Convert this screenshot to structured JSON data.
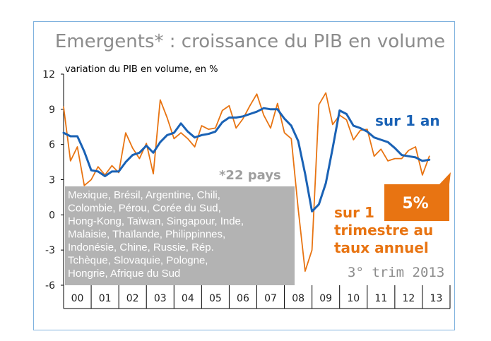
{
  "chart_data": {
    "type": "line",
    "title": "Emergents* : croissance du PIB en volume",
    "ylabel": "variation du PIB en volume, en %",
    "ylim": [
      -6,
      12
    ],
    "yticks": [
      "12",
      "9",
      "6",
      "3",
      "0",
      "-3",
      "-6"
    ],
    "categories": [
      "00",
      "01",
      "02",
      "03",
      "04",
      "05",
      "06",
      "07",
      "08",
      "09",
      "10",
      "11",
      "12",
      "13"
    ],
    "series": [
      {
        "name": "sur 1 an",
        "color": "#1a62b5",
        "x": [
          2000.0,
          2000.25,
          2000.5,
          2000.75,
          2001.0,
          2001.25,
          2001.5,
          2001.75,
          2002.0,
          2002.25,
          2002.5,
          2002.75,
          2003.0,
          2003.25,
          2003.5,
          2003.75,
          2004.0,
          2004.25,
          2004.5,
          2004.75,
          2005.0,
          2005.25,
          2005.5,
          2005.75,
          2006.0,
          2006.25,
          2006.5,
          2006.75,
          2007.0,
          2007.25,
          2007.5,
          2007.75,
          2008.0,
          2008.25,
          2008.5,
          2008.75,
          2009.0,
          2009.25,
          2009.5,
          2009.75,
          2010.0,
          2010.25,
          2010.5,
          2010.75,
          2011.0,
          2011.25,
          2011.5,
          2011.75,
          2012.0,
          2012.25,
          2012.5,
          2012.75,
          2013.0,
          2013.25
        ],
        "values": [
          7.0,
          6.7,
          6.7,
          5.4,
          3.8,
          3.7,
          3.3,
          3.7,
          3.7,
          4.5,
          5.1,
          5.3,
          5.9,
          5.3,
          6.2,
          6.8,
          7.0,
          7.8,
          7.1,
          6.6,
          6.8,
          6.9,
          7.1,
          7.9,
          8.3,
          8.3,
          8.4,
          8.6,
          8.8,
          9.1,
          9.0,
          9.0,
          8.2,
          7.6,
          6.3,
          3.5,
          0.3,
          0.9,
          2.7,
          5.7,
          8.9,
          8.6,
          7.6,
          7.4,
          7.1,
          6.6,
          6.4,
          6.2,
          5.7,
          5.1,
          5.0,
          4.9,
          4.6,
          4.7
        ]
      },
      {
        "name": "sur 1 trimestre au taux annuel",
        "color": "#e87412",
        "x": [
          2000.0,
          2000.25,
          2000.5,
          2000.75,
          2001.0,
          2001.25,
          2001.5,
          2001.75,
          2002.0,
          2002.25,
          2002.5,
          2002.75,
          2003.0,
          2003.25,
          2003.5,
          2003.75,
          2004.0,
          2004.25,
          2004.5,
          2004.75,
          2005.0,
          2005.25,
          2005.5,
          2005.75,
          2006.0,
          2006.25,
          2006.5,
          2006.75,
          2007.0,
          2007.25,
          2007.5,
          2007.75,
          2008.0,
          2008.25,
          2008.5,
          2008.75,
          2009.0,
          2009.25,
          2009.5,
          2009.75,
          2010.0,
          2010.25,
          2010.5,
          2010.75,
          2011.0,
          2011.25,
          2011.5,
          2011.75,
          2012.0,
          2012.25,
          2012.5,
          2012.75,
          2013.0,
          2013.25
        ],
        "values": [
          9.2,
          4.6,
          5.8,
          2.5,
          3.0,
          4.1,
          3.4,
          4.2,
          3.6,
          7.0,
          5.7,
          4.8,
          6.1,
          3.5,
          9.8,
          8.3,
          6.5,
          7.0,
          6.5,
          5.8,
          7.6,
          7.3,
          7.4,
          8.9,
          9.3,
          7.4,
          8.2,
          9.3,
          10.3,
          8.5,
          7.4,
          9.5,
          7.0,
          6.5,
          0.5,
          -4.8,
          -3.0,
          9.4,
          10.4,
          7.7,
          8.5,
          8.1,
          6.4,
          7.2,
          7.3,
          5.0,
          5.6,
          4.6,
          4.8,
          4.8,
          5.5,
          5.8,
          3.4,
          5.0
        ]
      }
    ],
    "grid": false,
    "annotations": {
      "star_label": "*22 pays",
      "countries_lines": [
        "Mexique, Brésil, Argentine, Chili,",
        "Colombie, Pérou, Corée du Sud,",
        "Hong-Kong, Taïwan, Singapour, Inde,",
        "Malaisie, Thaïlande, Philippinnes,",
        "Indonésie, Chine, Russie, Rép.",
        "Tchèque, Slovaquie, Pologne,",
        "Hongrie,  Afrique du Sud"
      ],
      "blue_label": "sur 1 an",
      "orange_label_lines": [
        "sur 1",
        "trimestre au",
        "taux annuel"
      ],
      "badge": "5%",
      "footnote": "3° trim 2013"
    }
  },
  "colors": {
    "frame": "#7fb2de",
    "blue": "#1a62b5",
    "orange": "#e87412",
    "box": "#b3b3b3",
    "axis": "#000000"
  }
}
